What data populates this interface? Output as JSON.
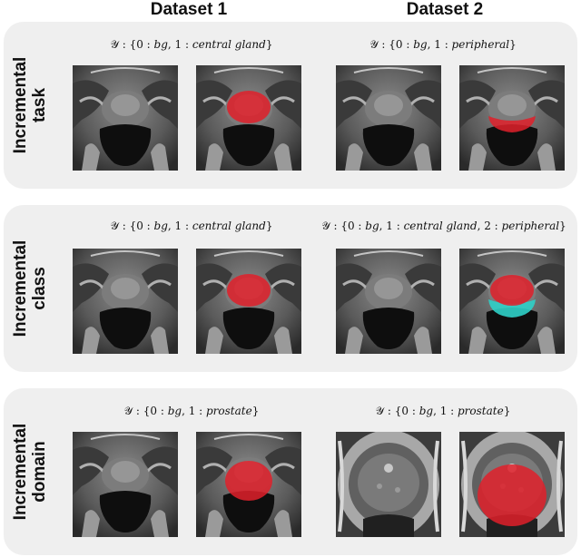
{
  "columns": [
    "Dataset 1",
    "Dataset 2"
  ],
  "rows": [
    {
      "label_line1": "Incremental",
      "label_line2": "task",
      "formula_left": {
        "prefix": "𝒴 : {0 : ",
        "italic": "bg",
        "mid": ", 1 : ",
        "italic2": "central gland",
        "suffix": "}"
      },
      "formula_right": {
        "prefix": "𝒴 : {0 : ",
        "italic": "bg",
        "mid": ", 1 : ",
        "italic2": "peripheral",
        "suffix": "}"
      }
    },
    {
      "label_line1": "Incremental",
      "label_line2": "class",
      "formula_left": {
        "prefix": "𝒴 : {0 : ",
        "italic": "bg",
        "mid": ", 1 : ",
        "italic2": "central gland",
        "suffix": "}"
      },
      "formula_right": {
        "prefix": "𝒴 : {0 : ",
        "italic": "bg",
        "mid": ", 1 : ",
        "italic2": "central gland",
        "mid2": ", 2 : ",
        "italic3": "peripheral",
        "suffix": "}"
      }
    },
    {
      "label_line1": "Incremental",
      "label_line2": "domain",
      "formula_left": {
        "prefix": "𝒴 : {0 : ",
        "italic": "bg",
        "mid": ", 1 : ",
        "italic2": "prostate",
        "suffix": "}"
      },
      "formula_right": {
        "prefix": "𝒴 : {0 : ",
        "italic": "bg",
        "mid": ", 1 : ",
        "italic2": "prostate",
        "suffix": "}"
      }
    }
  ],
  "colors": {
    "panel_bg": "#efefef",
    "mask_red": "#e0202a",
    "mask_cyan": "#2fd0c8"
  }
}
